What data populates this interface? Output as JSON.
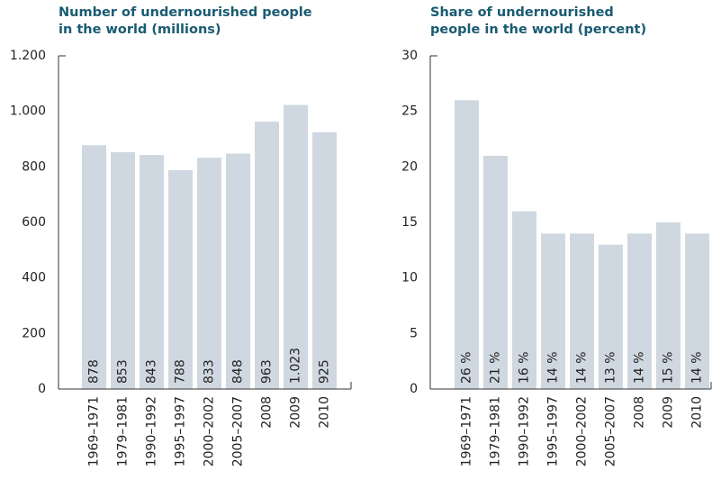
{
  "chart_data": [
    {
      "type": "bar",
      "title": "Number of undernourished people\nin the world (millions)",
      "categories": [
        "1969–1971",
        "1979–1981",
        "1990–1992",
        "1995–1997",
        "2000–2002",
        "2005–2007",
        "2008",
        "2009",
        "2010"
      ],
      "values": [
        878,
        853,
        843,
        788,
        833,
        848,
        963,
        1023,
        925
      ],
      "value_labels": [
        "878",
        "853",
        "843",
        "788",
        "833",
        "848",
        "963",
        "1.023",
        "925"
      ],
      "color": "#cfd8e0",
      "ylim": [
        0,
        1200
      ],
      "yticks": [
        0,
        200,
        400,
        600,
        800,
        {
          "value": 1000,
          "label": "1.000"
        },
        {
          "value": 1200,
          "label": "1.200"
        }
      ]
    },
    {
      "type": "bar",
      "title": "Share of undernourished\npeople in the world (percent)",
      "categories": [
        "1969–1971",
        "1979–1981",
        "1990–1992",
        "1995–1997",
        "2000–2002",
        "2005–2007",
        "2008",
        "2009",
        "2010"
      ],
      "values": [
        26,
        21,
        16,
        14,
        14,
        13,
        14,
        15,
        14
      ],
      "value_labels": [
        "26 %",
        "21 %",
        "16 %",
        "14 %",
        "14 %",
        "13 %",
        "14 %",
        "15 %",
        "14 %"
      ],
      "color": "#cfd8e0",
      "ylim": [
        0,
        30
      ],
      "yticks": [
        0,
        5,
        10,
        15,
        20,
        25,
        30
      ]
    }
  ]
}
